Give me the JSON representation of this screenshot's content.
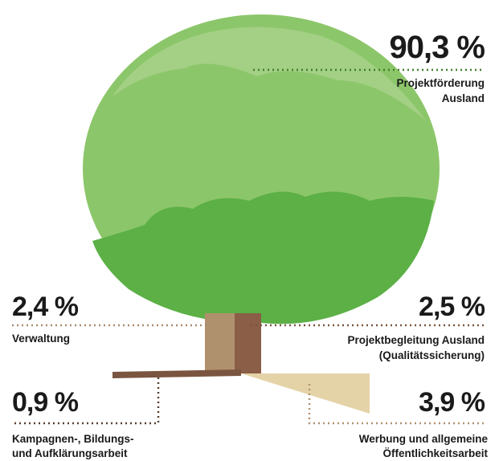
{
  "items": [
    {
      "value": "90,3 %",
      "label": [
        "Projektförderung",
        "Ausland"
      ]
    },
    {
      "value": "2,4 %",
      "label": [
        "Verwaltung"
      ]
    },
    {
      "value": "2,5 %",
      "label": [
        "Projektbegleitung Ausland",
        "(Qualitätssicherung)"
      ]
    },
    {
      "value": "0,9 %",
      "label": [
        "Kampagnen-, Bildungs-",
        "und Aufklärungsarbeit"
      ]
    },
    {
      "value": "3,9 %",
      "label": [
        "Werbung und allgemeine",
        "Öffentlichkeitsarbeit"
      ]
    }
  ]
}
